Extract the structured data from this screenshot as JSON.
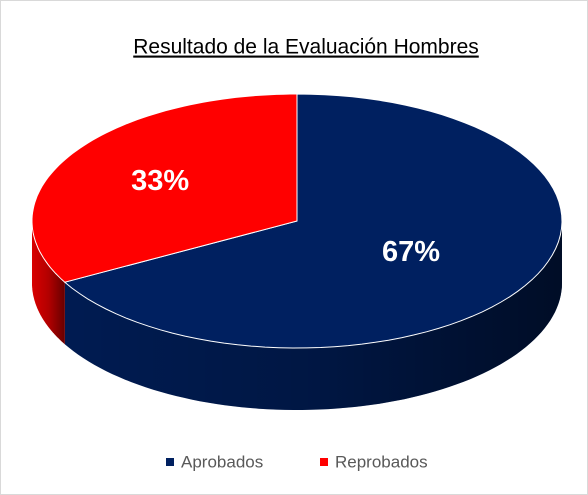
{
  "chart_data": {
    "type": "pie",
    "title": "Resultado de la Evaluación Hombres",
    "categories": [
      "Aprobados",
      "Reprobados"
    ],
    "values": [
      67,
      33
    ],
    "value_labels": [
      "67%",
      "33%"
    ],
    "colors": [
      "#002060",
      "#ff0000"
    ],
    "legend": "bottom"
  }
}
